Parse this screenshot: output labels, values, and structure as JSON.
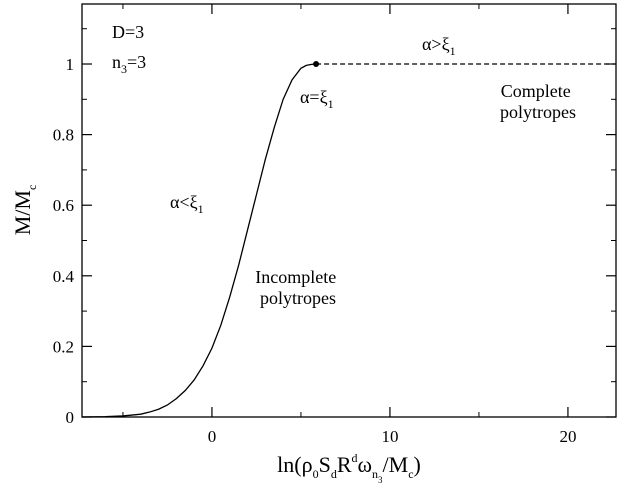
{
  "chart_data": {
    "type": "line",
    "xlim": [
      -7.3,
      22.7
    ],
    "ylim": [
      0,
      1.17
    ],
    "xticks": [
      0,
      10,
      20
    ],
    "xtick_labels": [
      "0",
      "10",
      "20"
    ],
    "yticks": [
      0,
      0.2,
      0.4,
      0.6,
      0.8,
      1
    ],
    "ytick_labels": [
      "0",
      "0.2",
      "0.4",
      "0.6",
      "0.8",
      "1"
    ],
    "xlabel_parts": {
      "pre": "ln(ρ",
      "s1": "0",
      "m1": "S",
      "s2": "d",
      "m2": "R",
      "sup": "d",
      "m3": "ω",
      "s3": "n",
      "s3sub": "3",
      "m4": "/M",
      "s4": "c",
      "post": ")"
    },
    "ylabel_parts": {
      "main": "M/M",
      "sub": "c"
    },
    "params": [
      {
        "main": "D=3",
        "sub": "",
        "tail": ""
      },
      {
        "main": "n",
        "sub": "3",
        "tail": "=3"
      }
    ],
    "annotations": {
      "alpha_lt": {
        "main": "α<ξ",
        "sub": "1"
      },
      "alpha_gt": {
        "main": "α>ξ",
        "sub": "1"
      },
      "alpha_eq": {
        "main": "α=ξ",
        "sub": "1"
      },
      "incomplete": [
        "Incomplete",
        "polytropes"
      ],
      "complete": [
        "Complete",
        "polytropes"
      ]
    },
    "series": [
      {
        "style": "solid",
        "x": [
          -7.3,
          -6,
          -5,
          -4,
          -3.5,
          -3,
          -2.5,
          -2,
          -1.5,
          -1,
          -0.5,
          0,
          0.5,
          1,
          1.5,
          2,
          2.5,
          3,
          3.5,
          4,
          4.5,
          5,
          5.3,
          5.6,
          5.85
        ],
        "y": [
          0,
          0.001,
          0.003,
          0.008,
          0.014,
          0.022,
          0.034,
          0.052,
          0.075,
          0.105,
          0.145,
          0.195,
          0.26,
          0.34,
          0.43,
          0.53,
          0.63,
          0.73,
          0.82,
          0.9,
          0.955,
          0.988,
          0.996,
          0.999,
          1.0
        ]
      },
      {
        "style": "dashed",
        "x": [
          5.85,
          22.7
        ],
        "y": [
          1.0,
          1.0
        ]
      }
    ],
    "marker": {
      "x": 5.85,
      "y": 1.0
    }
  }
}
